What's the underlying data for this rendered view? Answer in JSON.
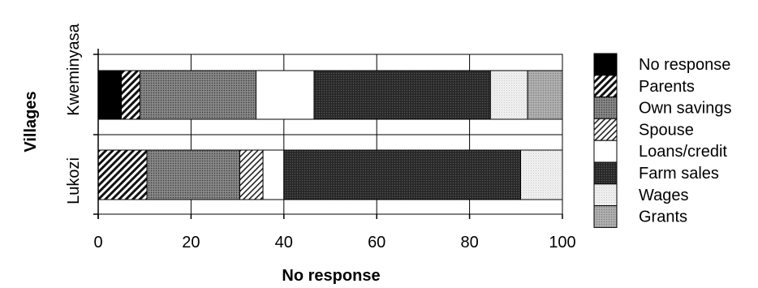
{
  "chart_data": {
    "type": "bar",
    "orientation": "horizontal",
    "stacked": true,
    "xlabel": "No response",
    "ylabel": "Villages",
    "xlim": [
      0,
      100
    ],
    "xticks": [
      "0",
      "20",
      "40",
      "60",
      "80",
      "100"
    ],
    "categories": [
      "Kweminyasa",
      "Lukozi"
    ],
    "legend_position": "right",
    "series": [
      {
        "name": "No response",
        "pattern": "solid-black",
        "values": [
          5,
          0
        ]
      },
      {
        "name": "Parents",
        "pattern": "hatch-dark",
        "values": [
          4,
          10.5
        ]
      },
      {
        "name": "Own savings",
        "pattern": "dots-dark",
        "values": [
          25,
          20
        ]
      },
      {
        "name": "Spouse",
        "pattern": "hatch-light",
        "values": [
          0,
          5
        ]
      },
      {
        "name": "Loans/credit",
        "pattern": "white",
        "values": [
          12.5,
          4.5
        ]
      },
      {
        "name": "Farm sales",
        "pattern": "dots-darkest",
        "values": [
          38,
          51
        ]
      },
      {
        "name": "Wages",
        "pattern": "dots-light",
        "values": [
          8,
          9
        ]
      },
      {
        "name": "Grants",
        "pattern": "dots-medium",
        "values": [
          7.5,
          0
        ]
      }
    ]
  }
}
